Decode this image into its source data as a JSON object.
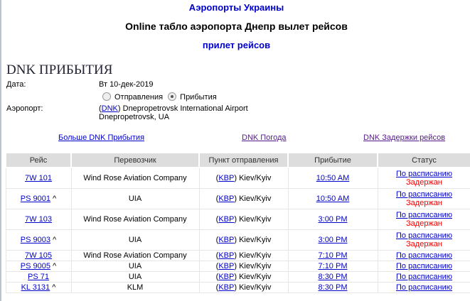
{
  "header": {
    "site_link": "Аэропорты Украины",
    "title": "Online табло аэропорта Днепр вылет рейсов",
    "arrivals_link": "прилет рейсов"
  },
  "page_title": "DNK ПРИБЫТИЯ",
  "info": {
    "date_label": "Дата:",
    "date_value": "Вт 10-дек-2019",
    "radio_departures": "Отправления",
    "radio_arrivals": "Прибытия",
    "selected": "arrivals",
    "airport_label": "Аэропорт:",
    "airport_code": "DNK",
    "airport_name": ") Dnepropetrovsk International Airport",
    "airport_city": "Dnepropetrovsk, UA"
  },
  "links": {
    "more": "Больше DNK Прибытия",
    "weather": "DNK Погода",
    "delays": "DNK Задержки рейсов"
  },
  "table": {
    "headers": [
      "Рейс",
      "Перевозчик",
      "Пункт отправления",
      "Прибытие",
      "Статус"
    ],
    "rows": [
      {
        "flight": "7W 101",
        "codeshare": "",
        "carrier": "Wind Rose Aviation Company",
        "code": "KBP",
        "city": ") Kiev/Kyiv",
        "time": "10:50 AM",
        "status": "По расписанию",
        "delay": "Задержан"
      },
      {
        "flight": "PS 9001",
        "codeshare": "^",
        "carrier": "UIA",
        "code": "KBP",
        "city": ") Kiev/Kyiv",
        "time": "10:50 AM",
        "status": "По расписанию",
        "delay": "Задержан"
      },
      {
        "flight": "7W 103",
        "codeshare": "",
        "carrier": "Wind Rose Aviation Company",
        "code": "KBP",
        "city": ") Kiev/Kyiv",
        "time": "3:00 PM",
        "status": "По расписанию",
        "delay": "Задержан"
      },
      {
        "flight": "PS 9003",
        "codeshare": "^",
        "carrier": "UIA",
        "code": "KBP",
        "city": ") Kiev/Kyiv",
        "time": "3:00 PM",
        "status": "По расписанию",
        "delay": "Задержан"
      },
      {
        "flight": "7W 105",
        "codeshare": "",
        "carrier": "Wind Rose Aviation Company",
        "code": "KBP",
        "city": ") Kiev/Kyiv",
        "time": "7:10 PM",
        "status": "По расписанию",
        "delay": ""
      },
      {
        "flight": "PS 9005",
        "codeshare": "^",
        "carrier": "UIA",
        "code": "KBP",
        "city": ") Kiev/Kyiv",
        "time": "7:10 PM",
        "status": "По расписанию",
        "delay": ""
      },
      {
        "flight": "PS 71",
        "codeshare": "",
        "carrier": "UIA",
        "code": "KBP",
        "city": ") Kiev/Kyiv",
        "time": "8:30 PM",
        "status": "По расписанию",
        "delay": ""
      },
      {
        "flight": "KL 3131",
        "codeshare": "^",
        "carrier": "KLM",
        "code": "KBP",
        "city": ") Kiev/Kyiv",
        "time": "8:30 PM",
        "status": "По расписанию",
        "delay": ""
      }
    ]
  }
}
